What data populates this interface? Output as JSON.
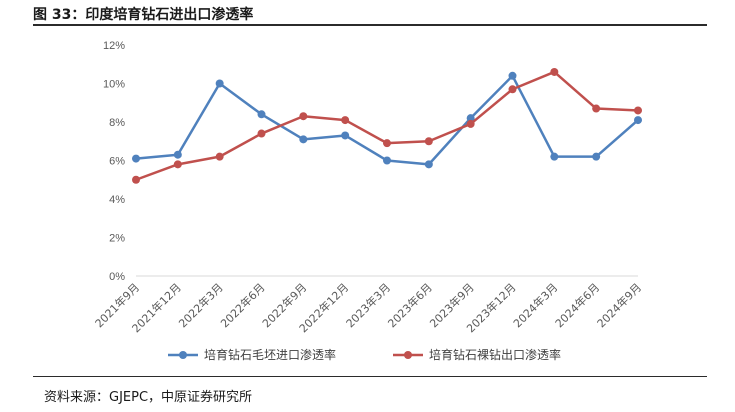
{
  "figure": {
    "title": "图 33：印度培育钻石进出口渗透率",
    "source": "资料来源：GJEPC，中原证券研究所"
  },
  "chart_data": {
    "type": "line",
    "title": "",
    "xlabel": "",
    "ylabel": "",
    "ylim": [
      0,
      12
    ],
    "yticks": [
      0,
      2,
      4,
      6,
      8,
      10,
      12
    ],
    "ytick_labels": [
      "0%",
      "2%",
      "4%",
      "6%",
      "8%",
      "10%",
      "12%"
    ],
    "grid": false,
    "legend_position": "bottom",
    "categories": [
      "2021年9月",
      "2021年12月",
      "2022年3月",
      "2022年6月",
      "2022年9月",
      "2022年12月",
      "2023年3月",
      "2023年6月",
      "2023年9月",
      "2023年12月",
      "2024年3月",
      "2024年6月",
      "2024年9月"
    ],
    "series": [
      {
        "name": "培育钻石毛坯进口渗透率",
        "color": "#4f81bd",
        "values": [
          6.1,
          6.3,
          10.0,
          8.4,
          7.1,
          7.3,
          6.0,
          5.8,
          8.2,
          10.4,
          6.2,
          6.2,
          8.1
        ]
      },
      {
        "name": "培育钻石裸钻出口渗透率",
        "color": "#c0504d",
        "values": [
          5.0,
          5.8,
          6.2,
          7.4,
          8.3,
          8.1,
          6.9,
          7.0,
          7.9,
          9.7,
          10.6,
          8.7,
          8.6
        ]
      }
    ]
  }
}
